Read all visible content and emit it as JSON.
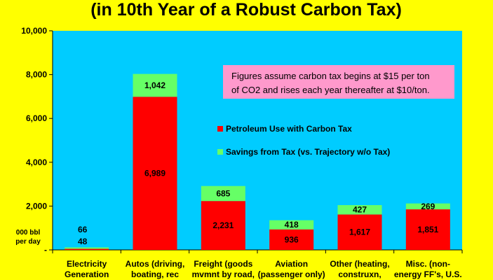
{
  "title": "(in 10th Year of a Robust Carbon Tax)",
  "unit_label": [
    "000 bbl",
    "per day"
  ],
  "note": [
    "Figures assume carbon tax begins at $15 per ton",
    "of CO2 and rises each year thereafter at $10/ton."
  ],
  "colors": {
    "page_background": "#FFFF00",
    "plot_background": "#00CCFF",
    "petroleum": "#FF0000",
    "savings": "#66FF66",
    "note_box": "#FF99CC"
  },
  "chart_data": {
    "type": "bar",
    "stacked": true,
    "title": "(in 10th Year of a Robust Carbon Tax)",
    "ylabel": "000 bbl per day",
    "ylim": [
      0,
      10000
    ],
    "yticks": [
      0,
      2000,
      4000,
      6000,
      8000,
      10000
    ],
    "ytick_labels": [
      "-",
      "2,000",
      "4,000",
      "6,000",
      "8,000",
      "10,000"
    ],
    "grid": false,
    "legend_position": "center-right",
    "categories": [
      [
        "Electricity",
        "Generation"
      ],
      [
        "Autos (driving,",
        "boating, rec"
      ],
      [
        "Freight (goods",
        "mvmnt by road,"
      ],
      [
        "Aviation",
        "(passenger only)"
      ],
      [
        "Other (heating,",
        "construxn,"
      ],
      [
        "Misc. (non-",
        "energy FF's, U.S."
      ]
    ],
    "series": [
      {
        "name": "Petroleum Use with Carbon Tax",
        "color": "#FF0000",
        "values": [
          48,
          6989,
          2231,
          936,
          1617,
          1851
        ],
        "labels": [
          "48",
          "6,989",
          "2,231",
          "936",
          "1,617",
          "1,851"
        ]
      },
      {
        "name": "Savings from Tax (vs. Trajectory w/o Tax)",
        "color": "#66FF66",
        "values": [
          66,
          1042,
          685,
          418,
          427,
          269
        ],
        "labels": [
          "66",
          "1,042",
          "685",
          "418",
          "427",
          "269"
        ]
      }
    ]
  }
}
